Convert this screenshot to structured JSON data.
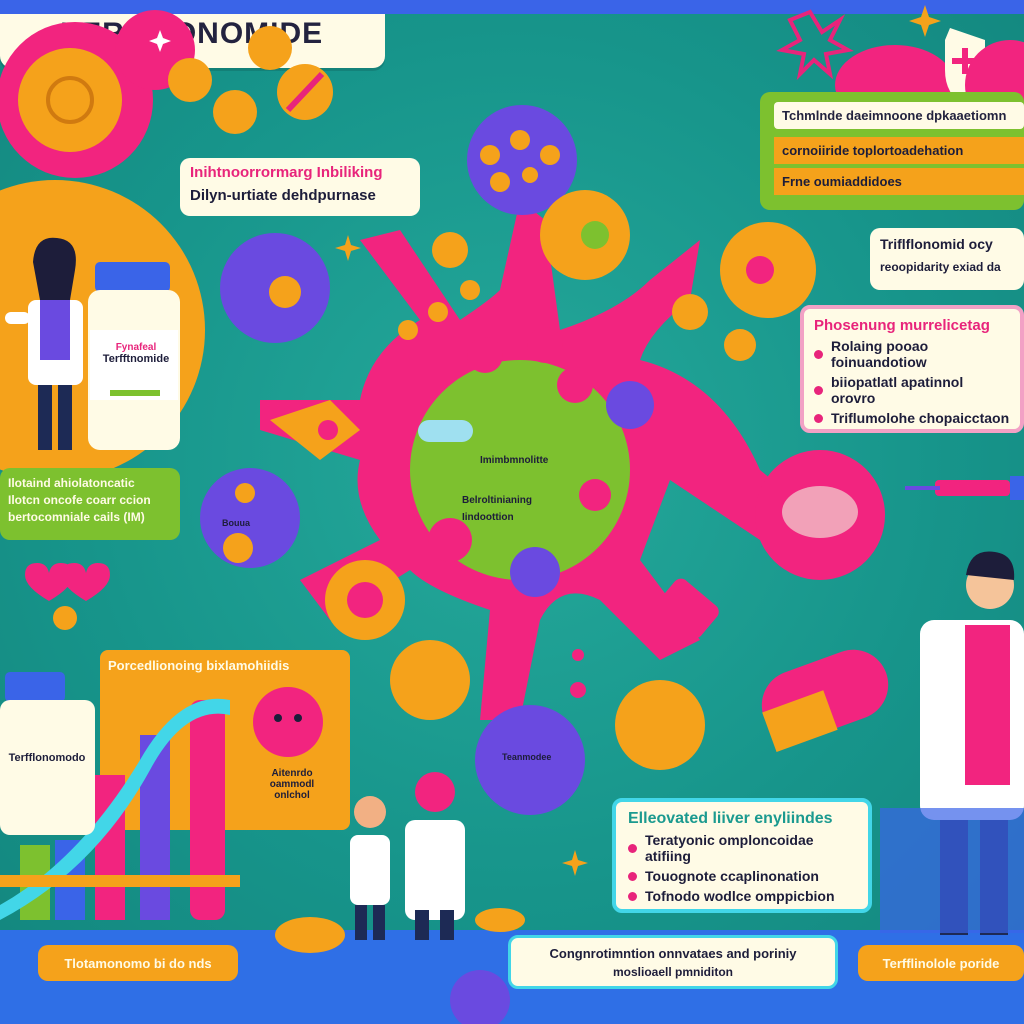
{
  "title": "TERIFLONOMIDE",
  "top_left_note": {
    "line1": "Inihtnoorrormarg Inbiliking",
    "line2": "Dilyn-urtiate dehdpurnase"
  },
  "top_right_panel": {
    "header": "Tchmlnde daeimnoone dpkaaetiomn",
    "row1": "cornoiiride toplortoadehation",
    "row2": "Frne oumiaddidoes"
  },
  "right_note": {
    "line1": "Triflflonomid ocy",
    "line2": "reoopidarity exiad da"
  },
  "right_panel": {
    "header": "Phosenung murrelicetag",
    "items": [
      "Rolaing pooao foinuandotiow",
      "biiopatlatl apatinnol orovro",
      "Triflumolohe chopaicctaon"
    ]
  },
  "left_green_panel": {
    "line1": "Ilotaind ahiolatoncatic",
    "line2": "Ilotcn oncofe coarr ccion",
    "line3": "bertocomniale cails (IM)"
  },
  "bottle_left_top": {
    "label1": "Fynafeal",
    "label2": "Terfftnomide"
  },
  "bottle_left_bottom": {
    "label1": "Terfflonomodo"
  },
  "orange_panel_left": {
    "header": "Porcedlionoing bixlamohiidis",
    "side_text": "Aitenrdo oammodl onlchol"
  },
  "center_cell": {
    "label1": "Imimbmnolitte",
    "label2": "Belroltinianing",
    "label3": "Iindoottion"
  },
  "left_cell_label": "Bouua",
  "bottom_cell_label": "Teanmodee",
  "liver_panel": {
    "header": "Elleovated liiver enyliindes",
    "items": [
      "Teratyonic omploncoidae atifiing",
      "Touognote ccaplinonation",
      "Tofnodo wodlce omppicbion"
    ]
  },
  "footer": {
    "left": "Tlotamonomo bi do nds",
    "center1": "Congnrotimntion onnvataes and poriniy",
    "center2": "moslioaell pmniditon",
    "right": "Terfflinolole poride"
  },
  "colors": {
    "pink": "#f2247f",
    "orange": "#f5a21b",
    "purple": "#6a4ae0",
    "lime": "#7dc12f",
    "cream": "#fffbe6"
  }
}
